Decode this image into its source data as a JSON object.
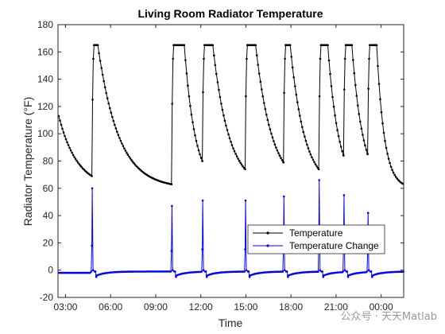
{
  "chart_data": {
    "type": "line",
    "title": "Living Room Radiator Temperature",
    "xlabel": "Time",
    "ylabel": "Radiator Temperature (°F)",
    "x_unit": "hours",
    "xlim": [
      2.5,
      25.5
    ],
    "ylim": [
      -20,
      180
    ],
    "x_ticks": [
      {
        "value": 3,
        "label": "03:00"
      },
      {
        "value": 6,
        "label": "06:00"
      },
      {
        "value": 9,
        "label": "09:00"
      },
      {
        "value": 12,
        "label": "12:00"
      },
      {
        "value": 15,
        "label": "15:00"
      },
      {
        "value": 18,
        "label": "18:00"
      },
      {
        "value": 21,
        "label": "21:00"
      },
      {
        "value": 24,
        "label": "00:00"
      }
    ],
    "y_ticks": [
      -20,
      0,
      20,
      40,
      60,
      80,
      100,
      120,
      140,
      160,
      180
    ],
    "grid": false,
    "legend_position": "lower-right",
    "series": [
      {
        "name": "Temperature",
        "color": "#000000",
        "marker": "dot",
        "cycles": [
          {
            "on": 4.75,
            "heat_end": 5.15,
            "off_end": 10.05,
            "start_temp": 69,
            "end_temp": 63
          },
          {
            "on": 10.05,
            "heat_end": 10.9,
            "off_end": 12.1,
            "start_temp": 63,
            "end_temp": 80
          },
          {
            "on": 12.1,
            "heat_end": 12.8,
            "off_end": 14.95,
            "start_temp": 80,
            "end_temp": 74
          },
          {
            "on": 14.95,
            "heat_end": 15.65,
            "off_end": 17.5,
            "start_temp": 74,
            "end_temp": 79
          },
          {
            "on": 17.5,
            "heat_end": 17.95,
            "off_end": 19.85,
            "start_temp": 79,
            "end_temp": 74
          },
          {
            "on": 19.85,
            "heat_end": 20.45,
            "off_end": 21.5,
            "start_temp": 74,
            "end_temp": 84
          },
          {
            "on": 21.5,
            "heat_end": 22.05,
            "off_end": 23.1,
            "start_temp": 84,
            "end_temp": 85
          },
          {
            "on": 23.1,
            "heat_end": 23.7,
            "off_end": 25.5,
            "start_temp": 85,
            "end_temp": 63
          }
        ],
        "initial_segment": {
          "start_x": 2.55,
          "start_temp": 113,
          "end_temp": 69
        },
        "peak": 165,
        "ambient": 60
      },
      {
        "name": "Temperature Change",
        "color": "#0000ff",
        "marker": "dot",
        "spikes": [
          {
            "x": 4.75,
            "value": 60
          },
          {
            "x": 10.05,
            "value": 47
          },
          {
            "x": 12.1,
            "value": 51
          },
          {
            "x": 14.95,
            "value": 51
          },
          {
            "x": 17.5,
            "value": 54
          },
          {
            "x": 19.85,
            "value": 66
          },
          {
            "x": 21.5,
            "value": 55
          },
          {
            "x": 23.1,
            "value": 42
          }
        ],
        "dip": -5,
        "baseline": -1
      }
    ]
  },
  "watermark": "公众号 · 天天Matlab"
}
